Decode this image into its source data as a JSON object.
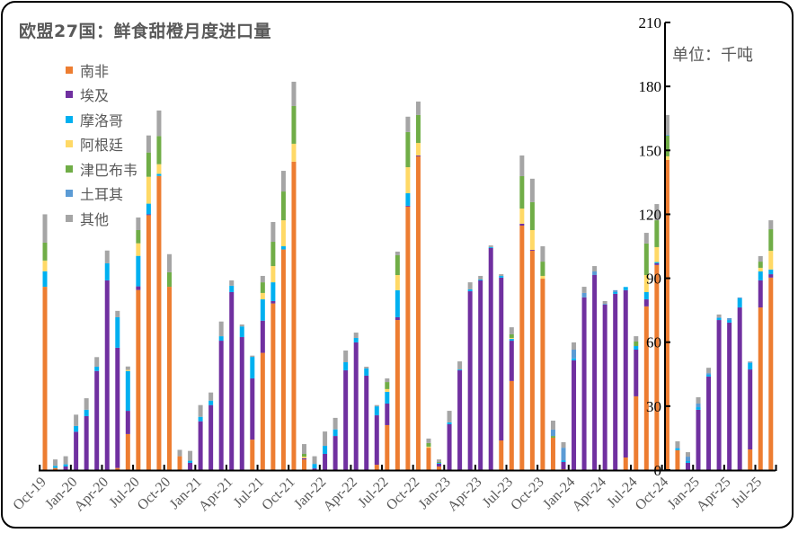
{
  "chart_data": {
    "type": "bar",
    "stacked": true,
    "title": "欧盟27国：鲜食甜橙月度进口量",
    "unit_label": "单位：千吨",
    "ylim": [
      0,
      210
    ],
    "y_ticks": [
      "0",
      "30",
      "60",
      "90",
      "120",
      "150",
      "180",
      "210"
    ],
    "y_axis_position": "right",
    "grid": false,
    "legend_position": "top-left",
    "categories": [
      "Oct-19",
      "Nov-19",
      "Dec-19",
      "Jan-20",
      "Feb-20",
      "Mar-20",
      "Apr-20",
      "May-20",
      "Jun-20",
      "Jul-20",
      "Aug-20",
      "Sep-20",
      "Oct-20",
      "Nov-20",
      "Dec-20",
      "Jan-21",
      "Feb-21",
      "Mar-21",
      "Apr-21",
      "May-21",
      "Jun-21",
      "Jul-21",
      "Aug-21",
      "Sep-21",
      "Oct-21",
      "Nov-21",
      "Dec-21",
      "Jan-22",
      "Feb-22",
      "Mar-22",
      "Apr-22",
      "May-22",
      "Jun-22",
      "Jul-22",
      "Aug-22",
      "Sep-22",
      "Oct-22",
      "Nov-22",
      "Dec-22",
      "Jan-23",
      "Feb-23",
      "Mar-23",
      "Apr-23",
      "May-23",
      "Jun-23",
      "Jul-23",
      "Aug-23",
      "Sep-23",
      "Oct-23",
      "Nov-23",
      "Dec-23",
      "Jan-24",
      "Feb-24",
      "Mar-24",
      "Apr-24",
      "May-24",
      "Jun-24",
      "Jul-24",
      "Aug-24",
      "Sep-24",
      "Oct-24",
      "Nov-24",
      "Dec-24",
      "Jan-25",
      "Feb-25",
      "Mar-25",
      "Apr-25",
      "May-25",
      "Jun-25",
      "Jul-25",
      "Aug-25"
    ],
    "x_tick_labels": [
      "Oct-19",
      "Jan-20",
      "Apr-20",
      "Jul-20",
      "Oct-20",
      "Jan-21",
      "Apr-21",
      "Jul-21",
      "Oct-21",
      "Jan-22",
      "Apr-22",
      "Jul-22",
      "Oct-22",
      "Jan-23",
      "Apr-23",
      "Jul-23",
      "Oct-23",
      "Jan-24",
      "Apr-24",
      "Jul-24",
      "Oct-24",
      "Jan-25",
      "Apr-25",
      "Jul-25"
    ],
    "series": [
      {
        "name": "南非",
        "color": "#ED7D31",
        "values": [
          86,
          1,
          0,
          0,
          0,
          0,
          0,
          1,
          16.9,
          84.5,
          119.6,
          138,
          86,
          6.5,
          0,
          0,
          0,
          0,
          0,
          0,
          14.3,
          55,
          78.2,
          103.5,
          144.7,
          5,
          0,
          0,
          0,
          0,
          0,
          0,
          2.5,
          21.1,
          70.4,
          123.6,
          147.2,
          10.5,
          1.7,
          0,
          0,
          0,
          0,
          0,
          13.9,
          41.8,
          114.7,
          102.9,
          89.8,
          15.2,
          0.4,
          0,
          0,
          0,
          0,
          0,
          5.9,
          34.6,
          76.8,
          96.2,
          145.5,
          9.3,
          0,
          0,
          0,
          0,
          0,
          0,
          9.7,
          76.3,
          90.3
        ]
      },
      {
        "name": "埃及",
        "color": "#7030A0",
        "values": [
          0,
          0,
          1.7,
          18,
          25.3,
          46.5,
          89,
          56.4,
          10.9,
          1.7,
          0.4,
          0,
          0,
          0,
          3.4,
          22.9,
          30.5,
          60.7,
          83.5,
          62.4,
          28.7,
          15.1,
          1.1,
          0,
          0,
          0.6,
          0.8,
          7.6,
          16,
          46.8,
          59.9,
          44.3,
          23.2,
          10.1,
          1.3,
          0.4,
          0.4,
          0,
          1.3,
          21.5,
          46.8,
          83.9,
          89,
          104.2,
          76.4,
          18.9,
          0.9,
          0.4,
          0,
          0,
          3.4,
          51.5,
          81,
          91.5,
          77.6,
          82.7,
          78.5,
          21.9,
          3.3,
          0.8,
          0,
          0,
          3.4,
          28.3,
          43.9,
          70.4,
          69.2,
          76.3,
          37.5,
          12.7,
          1.6
        ]
      },
      {
        "name": "摩洛哥",
        "color": "#00B0F0",
        "values": [
          7.3,
          1,
          1,
          2.7,
          3,
          2,
          8,
          14.3,
          18.7,
          14.3,
          5,
          1,
          0,
          0,
          1,
          2.1,
          2.1,
          2.1,
          3,
          5,
          10.1,
          10,
          8.8,
          1.5,
          0,
          0,
          2.1,
          3.8,
          3.1,
          3.8,
          2.1,
          3.4,
          4.2,
          5.5,
          12.7,
          5.9,
          0,
          0,
          0.4,
          0.9,
          0.4,
          0.9,
          0.4,
          0.4,
          0.8,
          0.9,
          0,
          0,
          0,
          0,
          0.8,
          0.9,
          0,
          0,
          0,
          0.8,
          1.5,
          1.7,
          3.4,
          0.6,
          0,
          0.8,
          0.8,
          1.2,
          0.8,
          0.9,
          1.2,
          4.3,
          3.1,
          4.2,
          2.2
        ]
      },
      {
        "name": "阿根廷",
        "color": "#FFD966",
        "values": [
          5,
          0,
          0,
          0,
          0,
          0,
          0,
          0,
          0.5,
          5.9,
          12.6,
          4.5,
          0,
          0,
          0,
          0,
          0,
          0,
          0,
          0,
          0,
          3,
          7.6,
          12.2,
          8.4,
          0.7,
          0,
          0,
          0,
          0,
          0,
          0,
          0,
          1.3,
          7.1,
          12.2,
          5.9,
          0.5,
          0,
          0,
          0,
          0,
          0,
          0,
          0,
          0.4,
          7.1,
          9.3,
          1.3,
          0,
          0,
          0,
          0,
          0,
          0,
          0,
          0,
          0,
          8,
          7,
          1.7,
          0,
          0,
          0,
          0,
          0,
          0,
          0,
          0,
          1.7,
          8.8
        ]
      },
      {
        "name": "津巴布韦",
        "color": "#70AD47",
        "values": [
          8.4,
          0,
          0,
          0,
          0,
          0,
          0,
          0,
          0,
          6.2,
          11.4,
          13.2,
          6.8,
          0,
          0,
          0,
          0,
          0,
          0,
          0,
          0,
          5,
          11.4,
          13.5,
          17.7,
          1.3,
          0,
          0,
          0,
          0,
          0,
          0,
          0,
          3.3,
          9.3,
          16.5,
          13.1,
          1.7,
          0.4,
          0,
          0,
          0,
          0,
          0,
          0,
          1.7,
          15.2,
          13.1,
          6.7,
          0.8,
          0,
          0,
          0,
          0,
          0,
          0,
          0,
          2.1,
          14.8,
          12.6,
          9.7,
          0,
          0,
          0,
          0,
          0,
          0,
          0,
          0,
          2.9,
          10.1
        ]
      },
      {
        "name": "土耳其",
        "color": "#5B9BD5",
        "values": [
          0,
          0,
          0,
          0,
          0,
          0,
          0,
          0,
          0,
          0,
          0,
          0,
          0,
          0,
          0,
          0,
          0,
          0,
          0,
          0,
          0,
          0,
          0,
          0,
          0,
          0,
          0,
          0,
          0,
          0,
          0,
          0,
          0,
          0,
          0,
          0,
          0,
          0,
          0,
          0,
          0,
          0,
          0,
          0,
          0,
          0,
          0,
          0,
          0,
          3,
          5.9,
          4.1,
          2.1,
          1.7,
          0.4,
          0.9,
          0,
          0,
          0,
          0,
          0.4,
          0.4,
          2.1,
          1.7,
          0.8,
          0.4,
          0.9,
          0.4,
          0.4,
          0,
          0
        ]
      },
      {
        "name": "其他",
        "color": "#A5A5A5",
        "values": [
          13.3,
          3,
          3.8,
          5.3,
          5.4,
          4.5,
          6,
          3,
          1.6,
          5.9,
          8,
          12,
          8.5,
          3,
          4.6,
          5.5,
          3.8,
          6.9,
          2.5,
          0.9,
          0.6,
          3,
          9.3,
          9.7,
          11.4,
          4.6,
          3.6,
          6.7,
          5.4,
          5.5,
          2.5,
          0.8,
          0.6,
          1.7,
          1.7,
          7.2,
          6.3,
          2.1,
          1.2,
          5.4,
          3.8,
          3.3,
          1.7,
          0.8,
          0.8,
          3.3,
          9.7,
          11,
          7.2,
          4.2,
          2.6,
          3.4,
          2.9,
          2.5,
          1.3,
          0,
          0,
          2.5,
          5,
          7.6,
          9.3,
          3,
          2.1,
          3,
          2.5,
          1.3,
          0,
          0,
          0.3,
          2.6,
          4.2
        ]
      }
    ]
  }
}
